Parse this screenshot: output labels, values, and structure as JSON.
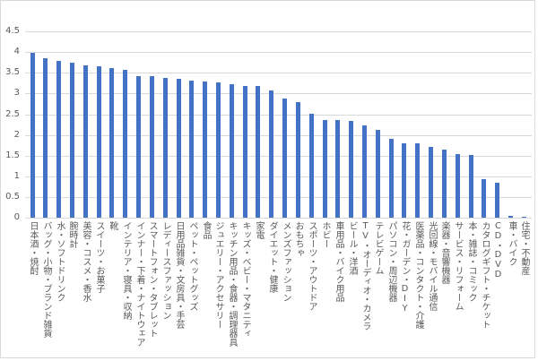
{
  "chart_data": {
    "type": "bar",
    "title": "",
    "xlabel": "",
    "ylabel": "",
    "ylim": [
      0,
      4.5
    ],
    "yticks": [
      "0",
      "0.5",
      "1",
      "1.5",
      "2",
      "2.5",
      "3",
      "3.5",
      "4",
      "4.5"
    ],
    "grid": true,
    "legend": null,
    "bar_color": "#4472c4",
    "categories": [
      "日本酒・焼酎",
      "バッグ・小物・ブランド雑貨",
      "水・ソフトドリンク",
      "腕時計",
      "美容・コスメ・香水",
      "スイーツ・お菓子",
      "靴",
      "インテリア・寝具・収納",
      "インナー・下着・ナイトウェア",
      "スマートフォン・タブレット",
      "レディースファッション",
      "日用品雑貨・文房具・手芸",
      "ペット・ペットグッズ",
      "食品",
      "ジュエリー・アクセサリー",
      "キッチン用品・食器・調理器具",
      "キッズ・ベビー・マタニティ",
      "家電",
      "ダイエット・健康",
      "メンズファッション",
      "おもちゃ",
      "スポーツ・アウトドア",
      "ホビー",
      "車用品・バイク用品",
      "ビール・洋酒",
      "TV・オーディオ・カメラ",
      "テレビゲーム",
      "パソコン・周辺機器",
      "花・ガーデン・DIY",
      "医薬品・コンタクト・介護",
      "光回線・モバイル通信",
      "楽器・音響機器",
      "サービス・リフォーム",
      "本・雑誌・コミック",
      "カタログギフト・チケット",
      "CD・DVD",
      "車・バイク",
      "住宅・不動産"
    ],
    "values": [
      3.99,
      3.85,
      3.79,
      3.74,
      3.69,
      3.65,
      3.61,
      3.57,
      3.43,
      3.41,
      3.37,
      3.35,
      3.32,
      3.29,
      3.27,
      3.23,
      3.19,
      3.19,
      3.08,
      2.88,
      2.79,
      2.51,
      2.37,
      2.36,
      2.33,
      2.24,
      2.12,
      1.9,
      1.8,
      1.8,
      1.7,
      1.64,
      1.53,
      1.52,
      0.93,
      0.84,
      0.04,
      0.02
    ]
  }
}
